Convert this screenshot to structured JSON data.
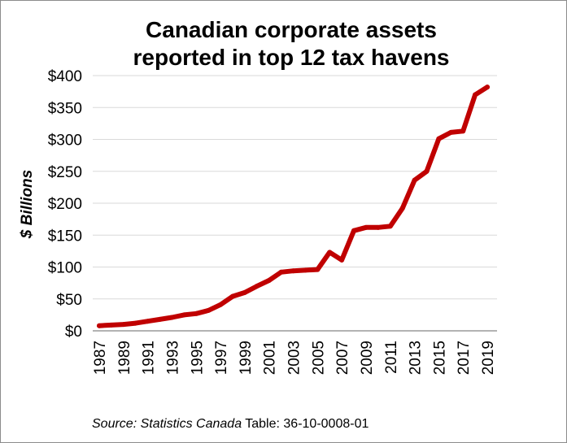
{
  "chart_data": {
    "type": "line",
    "title_lines": [
      "Canadian corporate assets",
      "reported in top 12 tax havens"
    ],
    "ylabel": "$ Billions",
    "ylim": [
      0,
      400
    ],
    "y_ticks": [
      0,
      50,
      100,
      150,
      200,
      250,
      300,
      350,
      400
    ],
    "y_tick_labels": [
      "$0",
      "$50",
      "$100",
      "$150",
      "$200",
      "$250",
      "$300",
      "$350",
      "$400"
    ],
    "x": [
      1987,
      1988,
      1989,
      1990,
      1991,
      1992,
      1993,
      1994,
      1995,
      1996,
      1997,
      1998,
      1999,
      2000,
      2001,
      2002,
      2003,
      2004,
      2005,
      2006,
      2007,
      2008,
      2009,
      2010,
      2011,
      2012,
      2013,
      2014,
      2015,
      2016,
      2017,
      2018,
      2019
    ],
    "x_tick_labels": [
      "1987",
      "1989",
      "1991",
      "1993",
      "1995",
      "1997",
      "1999",
      "2001",
      "2003",
      "2005",
      "2007",
      "2009",
      "2011",
      "2013",
      "2015",
      "2017",
      "2019"
    ],
    "series": [
      {
        "name": "Canadian corporate assets in top 12 tax havens",
        "color": "#c00000",
        "values": [
          8,
          9,
          10,
          12,
          15,
          18,
          21,
          25,
          27,
          32,
          41,
          54,
          60,
          70,
          79,
          92,
          94,
          95,
          96,
          123,
          111,
          157,
          162,
          162,
          164,
          192,
          236,
          250,
          301,
          311,
          313,
          370,
          382
        ]
      }
    ],
    "grid": true,
    "source_italic": "Source: Statistics Canada",
    "source_plain": " Table: 36-10-0008-01"
  }
}
